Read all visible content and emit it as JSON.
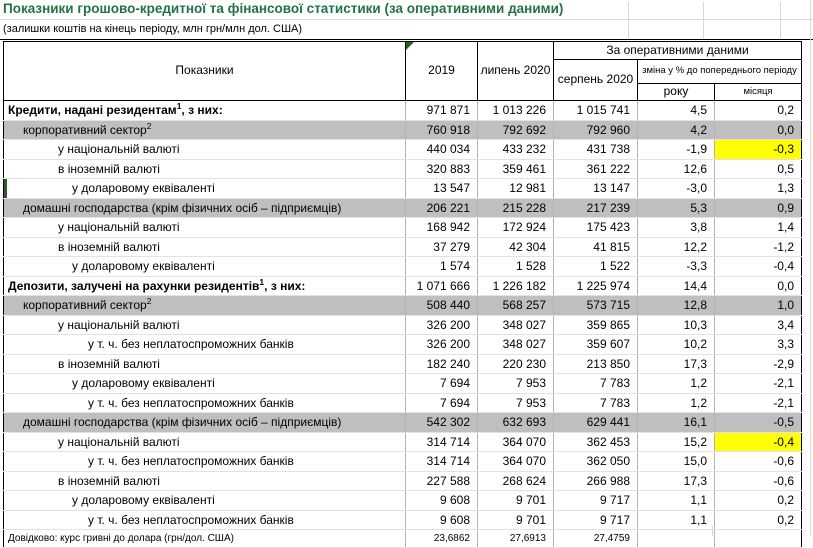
{
  "title": "Показники грошово-кредитної та фінансової статистики (за оперативними даними)",
  "subtitle": "(залишки коштів на кінець періоду, млн грн/млн дол. США)",
  "colors": {
    "title_green": "#217346",
    "row_gray": "#bfbfbf",
    "highlight_yellow": "#ffff00",
    "marker_green": "#2e5b27"
  },
  "icons": {
    "corner_marker": "cell-flag-triangle",
    "row_marker": "green-left-bar"
  },
  "table": {
    "header": {
      "indicators": "Показники",
      "col_2019": "2019",
      "col_july": "липень 2020",
      "operational_banner": "За оперативними даними",
      "col_august": "серпень 2020",
      "change_label": "зміна у % до попереднього періоду",
      "col_year": "року",
      "col_month": "місяця"
    },
    "rows": [
      {
        "label": "Кредити, надані резидентам",
        "sup": "1",
        "suffix": ", з них:",
        "style": "section",
        "indent": 0,
        "values": [
          "971 871",
          "1 013 226",
          "1 015 741",
          "4,5",
          "0,2"
        ]
      },
      {
        "label": "корпоративний сектор",
        "sup": "2",
        "suffix": "",
        "style": "gray",
        "indent": 1,
        "values": [
          "760 918",
          "792 692",
          "792 960",
          "4,2",
          "0,0"
        ]
      },
      {
        "label": "у національній валюті",
        "sup": "",
        "suffix": "",
        "style": "normal",
        "indent": 2,
        "highlight_month": true,
        "values": [
          "440 034",
          "433 232",
          "431 738",
          "-1,9",
          "-0,3"
        ]
      },
      {
        "label": "в іноземній валюті",
        "sup": "",
        "suffix": "",
        "style": "normal",
        "indent": 2,
        "values": [
          "320 883",
          "359 461",
          "361 222",
          "12,6",
          "0,5"
        ]
      },
      {
        "label": "у доларовому еквіваленті",
        "sup": "",
        "suffix": "",
        "style": "normal",
        "indent": 3,
        "green_left": true,
        "values": [
          "13 547",
          "12 981",
          "13 147",
          "-3,0",
          "1,3"
        ]
      },
      {
        "label": "домашні господарства (крім фізичних осіб – підприємців)",
        "sup": "",
        "suffix": "",
        "style": "gray",
        "indent": 1,
        "values": [
          "206 221",
          "215 228",
          "217 239",
          "5,3",
          "0,9"
        ]
      },
      {
        "label": "у національній валюті",
        "sup": "",
        "suffix": "",
        "style": "normal",
        "indent": 2,
        "values": [
          "168 942",
          "172 924",
          "175 423",
          "3,8",
          "1,4"
        ]
      },
      {
        "label": "в іноземній валюті",
        "sup": "",
        "suffix": "",
        "style": "normal",
        "indent": 2,
        "values": [
          "37 279",
          "42 304",
          "41 815",
          "12,2",
          "-1,2"
        ]
      },
      {
        "label": "у доларовому еквіваленті",
        "sup": "",
        "suffix": "",
        "style": "normal",
        "indent": 3,
        "values": [
          "1 574",
          "1 528",
          "1 522",
          "-3,3",
          "-0,4"
        ]
      },
      {
        "label": "Депозити, залучені на рахунки резидентів",
        "sup": "1",
        "suffix": ", з них:",
        "style": "section",
        "indent": 0,
        "thick_top": true,
        "values": [
          "1 071 666",
          "1 226 182",
          "1 225 974",
          "14,4",
          "0,0"
        ]
      },
      {
        "label": "корпоративний сектор",
        "sup": "2",
        "suffix": "",
        "style": "gray",
        "indent": 1,
        "values": [
          "508 440",
          "568 257",
          "573 715",
          "12,8",
          "1,0"
        ]
      },
      {
        "label": "у національній валюті",
        "sup": "",
        "suffix": "",
        "style": "normal",
        "indent": 2,
        "values": [
          "326 200",
          "348 027",
          "359 865",
          "10,3",
          "3,4"
        ]
      },
      {
        "label": "у т. ч. без неплатоспроможних банків",
        "sup": "",
        "suffix": "",
        "style": "normal",
        "indent": 4,
        "values": [
          "326 200",
          "348 027",
          "359 607",
          "10,2",
          "3,3"
        ]
      },
      {
        "label": "в іноземній валюті",
        "sup": "",
        "suffix": "",
        "style": "normal",
        "indent": 2,
        "values": [
          "182 240",
          "220 230",
          "213 850",
          "17,3",
          "-2,9"
        ]
      },
      {
        "label": "у доларовому еквіваленті",
        "sup": "",
        "suffix": "",
        "style": "normal",
        "indent": 3,
        "values": [
          "7 694",
          "7 953",
          "7 783",
          "1,2",
          "-2,1"
        ]
      },
      {
        "label": "у т. ч. без неплатоспроможних банків",
        "sup": "",
        "suffix": "",
        "style": "normal",
        "indent": 4,
        "values": [
          "7 694",
          "7 953",
          "7 783",
          "1,2",
          "-2,1"
        ]
      },
      {
        "label": "домашні господарства (крім фізичних осіб – підприємців)",
        "sup": "",
        "suffix": "",
        "style": "gray",
        "indent": 1,
        "values": [
          "542 302",
          "632 693",
          "629 441",
          "16,1",
          "-0,5"
        ]
      },
      {
        "label": "у національній валюті",
        "sup": "",
        "suffix": "",
        "style": "normal",
        "indent": 2,
        "highlight_month": true,
        "values": [
          "314 714",
          "364 070",
          "362 453",
          "15,2",
          "-0,4"
        ]
      },
      {
        "label": "у т. ч. без неплатоспроможних банків",
        "sup": "",
        "suffix": "",
        "style": "normal",
        "indent": 4,
        "values": [
          "314 714",
          "364 070",
          "362 050",
          "15,0",
          "-0,6"
        ]
      },
      {
        "label": "в іноземній валюті",
        "sup": "",
        "suffix": "",
        "style": "normal",
        "indent": 2,
        "values": [
          "227 588",
          "268 624",
          "266 988",
          "17,3",
          "-0,6"
        ]
      },
      {
        "label": "у доларовому еквіваленті",
        "sup": "",
        "suffix": "",
        "style": "normal",
        "indent": 3,
        "values": [
          "9 608",
          "9 701",
          "9 717",
          "1,1",
          "0,2"
        ]
      },
      {
        "label": "у т. ч. без неплатоспроможних банків",
        "sup": "",
        "suffix": "",
        "style": "normal",
        "indent": 4,
        "values": [
          "9 608",
          "9 701",
          "9 717",
          "1,1",
          "0,2"
        ]
      },
      {
        "label": "Довідково: курс гривні до долара (грн/дол. США)",
        "sup": "",
        "suffix": "",
        "style": "note",
        "indent": 0,
        "thick_top": true,
        "values": [
          "23,6862",
          "27,6913",
          "27,4759",
          "",
          ""
        ]
      }
    ]
  }
}
